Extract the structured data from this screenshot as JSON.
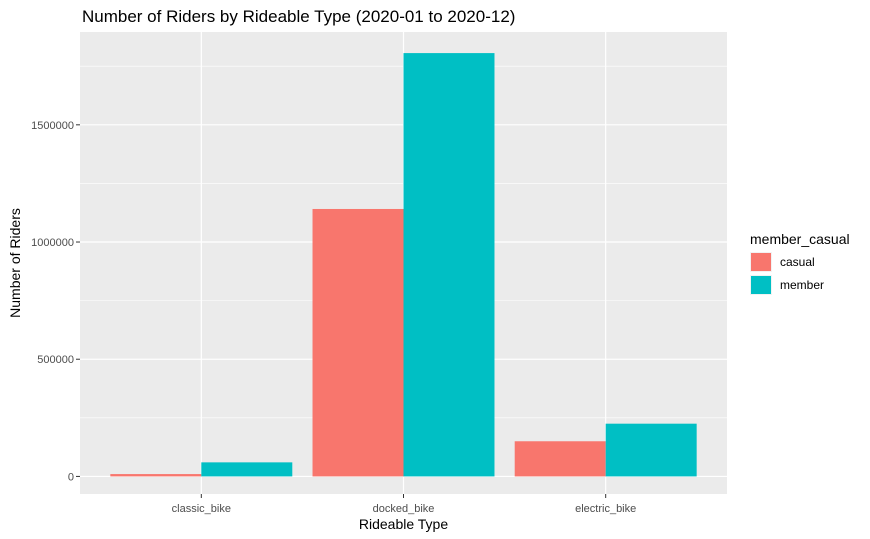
{
  "chart_data": {
    "type": "bar",
    "title": "Number of Riders by Rideable Type (2020-01 to 2020-12)",
    "xlabel": "Rideable Type",
    "ylabel": "Number of Riders",
    "categories": [
      "classic_bike",
      "docked_bike",
      "electric_bike"
    ],
    "series": [
      {
        "name": "casual",
        "color": "#F8766D",
        "values": [
          10000,
          1141000,
          150000
        ]
      },
      {
        "name": "member",
        "color": "#00BFC4",
        "values": [
          60000,
          1806000,
          225000
        ]
      }
    ],
    "ylim": [
      -75000,
      1896000
    ],
    "yticks": [
      0,
      500000,
      1000000,
      1500000
    ],
    "ytick_labels": [
      "0",
      "500000",
      "1000000",
      "1500000"
    ],
    "legend": {
      "title": "member_casual",
      "position": "right"
    },
    "grid": true,
    "panel_background": "#EBEBEB",
    "grid_color": "#FFFFFF"
  }
}
